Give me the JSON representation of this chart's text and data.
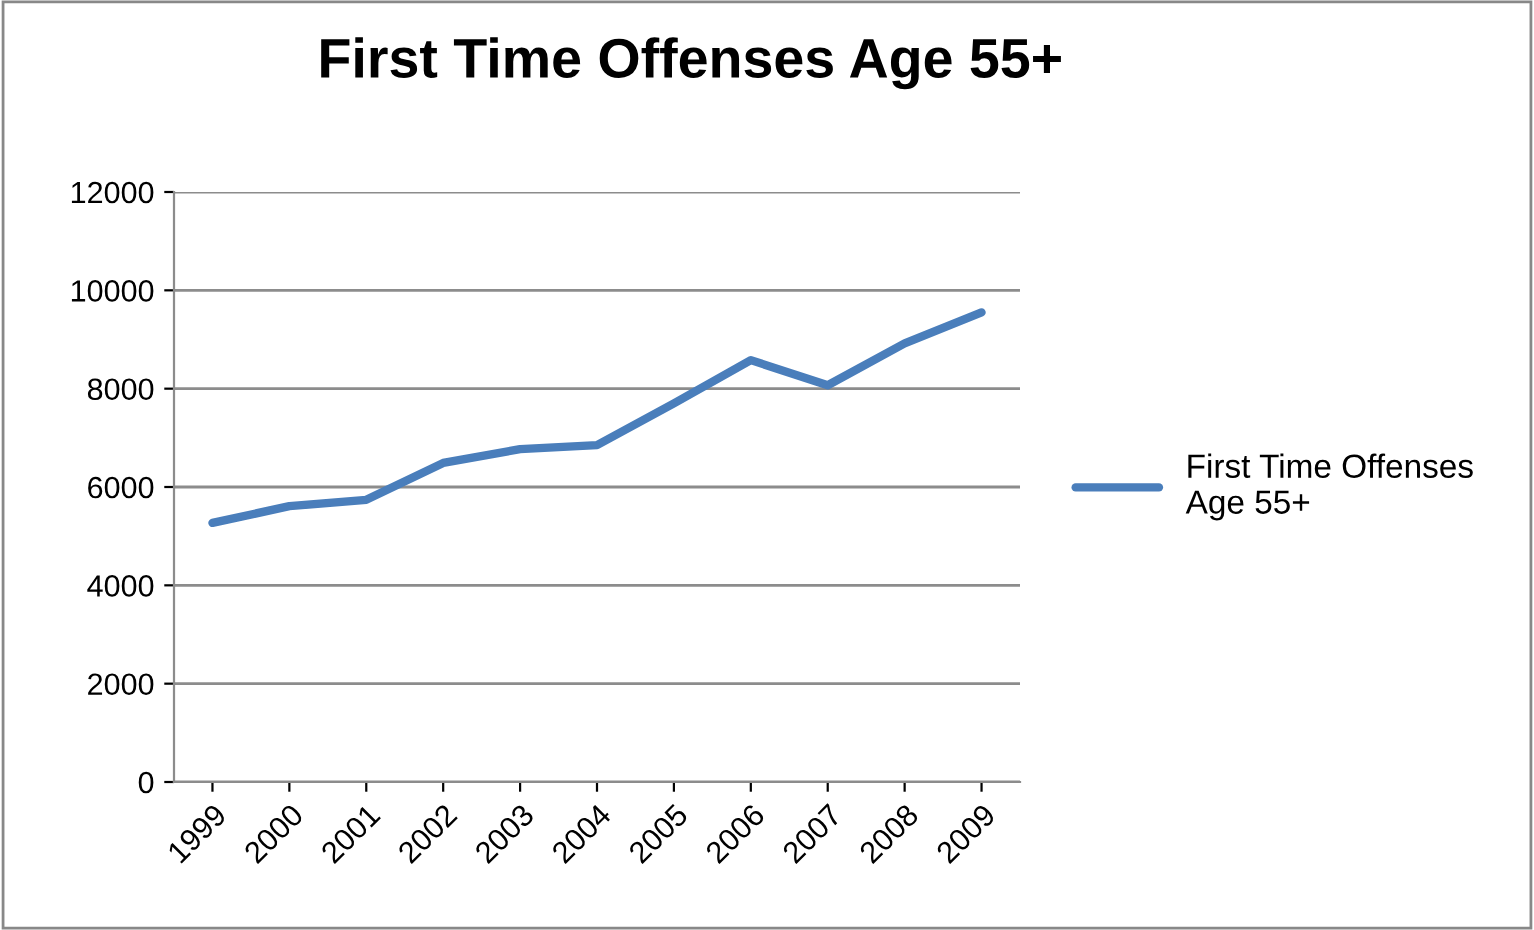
{
  "chart_data": {
    "type": "line",
    "title": "First Time Offenses Age 55+",
    "categories": [
      "1999",
      "2000",
      "2001",
      "2002",
      "2003",
      "2004",
      "2005",
      "2006",
      "2007",
      "2008",
      "2009"
    ],
    "series": [
      {
        "name": "First Time Offenses Age 55+",
        "color": "#4a7ebb",
        "values": [
          5270,
          5610,
          5740,
          6490,
          6770,
          6850,
          7700,
          8580,
          8070,
          8920,
          9550
        ]
      }
    ],
    "ylim": [
      0,
      12000
    ],
    "yticks": [
      0,
      2000,
      4000,
      6000,
      8000,
      10000,
      12000
    ],
    "grid": "y",
    "legend": "right"
  }
}
